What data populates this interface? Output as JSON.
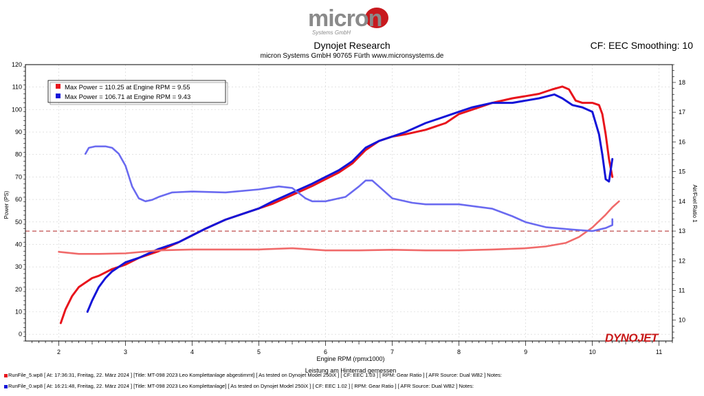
{
  "brand": {
    "logo_main": "micron",
    "logo_sub": "Systems GmbH"
  },
  "header": {
    "title": "Dynojet Research",
    "subtitle": "micron Systems GmbH  90765 Fürth www.micronsystems.de",
    "cf": "CF: EEC Smoothing: 10"
  },
  "watermark": "DYNOJET",
  "colors": {
    "red": "#e8141c",
    "blue": "#1414d8",
    "red_afr": "#f06a6a",
    "blue_afr": "#6a6af0",
    "ref_line": "#b02020"
  },
  "chart_data": {
    "type": "line",
    "xlabel": "Engine RPM (rpmx1000)",
    "xlabel2": "Leistung am Hinterrad gemessen",
    "ylabel": "Power (PS)",
    "y2label": "Air/Fuel Ratio 1",
    "xlim": [
      1.5,
      11.2
    ],
    "ylim": [
      -3,
      120
    ],
    "y2lim": [
      9.3,
      18.6
    ],
    "xticks": [
      2,
      3,
      4,
      5,
      6,
      7,
      8,
      9,
      10,
      11
    ],
    "yticks": [
      0,
      10,
      20,
      30,
      40,
      50,
      60,
      70,
      80,
      90,
      100,
      110,
      120
    ],
    "y2ticks": [
      10,
      11,
      12,
      13,
      14,
      15,
      16,
      17,
      18
    ],
    "legend": [
      "Max Power = 110.25 at Engine RPM = 9.55",
      "Max Power = 106.71 at Engine RPM = 9.43"
    ],
    "reference_afr": 13.0,
    "series": [
      {
        "color": "red",
        "axis": "power",
        "x": [
          2.03,
          2.1,
          2.2,
          2.3,
          2.4,
          2.5,
          2.6,
          2.8,
          3.0,
          3.2,
          3.5,
          3.8,
          4.0,
          4.2,
          4.5,
          4.8,
          5.0,
          5.2,
          5.5,
          5.8,
          6.0,
          6.2,
          6.4,
          6.6,
          6.8,
          7.0,
          7.2,
          7.5,
          7.8,
          8.0,
          8.2,
          8.5,
          8.8,
          9.0,
          9.2,
          9.4,
          9.55,
          9.65,
          9.75,
          9.85,
          10.0,
          10.1,
          10.15,
          10.2,
          10.25,
          10.3
        ],
        "values": [
          5,
          11,
          17,
          21,
          23,
          25,
          26,
          29,
          31,
          34,
          37,
          41,
          44,
          47,
          51,
          54,
          56,
          58,
          62,
          66,
          69,
          72,
          76,
          82,
          86,
          88,
          89,
          91,
          94,
          98,
          100,
          103,
          105,
          106,
          107,
          109,
          110.25,
          109,
          104,
          103,
          103,
          102,
          98,
          89,
          78,
          70
        ]
      },
      {
        "color": "blue",
        "axis": "power",
        "x": [
          2.43,
          2.5,
          2.6,
          2.7,
          2.8,
          3.0,
          3.2,
          3.5,
          3.8,
          4.0,
          4.2,
          4.5,
          4.8,
          5.0,
          5.2,
          5.5,
          5.8,
          6.0,
          6.2,
          6.4,
          6.6,
          6.8,
          7.0,
          7.2,
          7.5,
          7.8,
          8.0,
          8.2,
          8.5,
          8.8,
          9.0,
          9.2,
          9.43,
          9.55,
          9.7,
          9.85,
          10.0,
          10.1,
          10.15,
          10.2,
          10.25,
          10.3
        ],
        "values": [
          10,
          15,
          21,
          25,
          28,
          32,
          34,
          38,
          41,
          44,
          47,
          51,
          54,
          56,
          59,
          63,
          67,
          70,
          73,
          77,
          83,
          86,
          88,
          90,
          94,
          97,
          99,
          101,
          103,
          103,
          104,
          105,
          106.71,
          105,
          102,
          101,
          99,
          89,
          80,
          69,
          68,
          78
        ]
      },
      {
        "color": "red_afr",
        "axis": "afr",
        "x": [
          2.0,
          2.3,
          2.6,
          3.0,
          3.5,
          4.0,
          4.5,
          5.0,
          5.5,
          6.0,
          6.5,
          7.0,
          7.5,
          8.0,
          8.5,
          9.0,
          9.3,
          9.6,
          9.8,
          10.0,
          10.2,
          10.3,
          10.4
        ],
        "values": [
          12.3,
          12.23,
          12.23,
          12.25,
          12.35,
          12.38,
          12.38,
          12.38,
          12.42,
          12.35,
          12.35,
          12.37,
          12.35,
          12.35,
          12.38,
          12.42,
          12.48,
          12.6,
          12.8,
          13.12,
          13.55,
          13.8,
          14.0
        ]
      },
      {
        "color": "blue_afr",
        "axis": "afr",
        "x": [
          2.4,
          2.45,
          2.55,
          2.7,
          2.8,
          2.9,
          3.0,
          3.1,
          3.2,
          3.3,
          3.4,
          3.5,
          3.7,
          4.0,
          4.5,
          5.0,
          5.3,
          5.5,
          5.7,
          5.8,
          6.0,
          6.3,
          6.5,
          6.6,
          6.7,
          6.8,
          7.0,
          7.3,
          7.5,
          8.0,
          8.5,
          8.8,
          9.0,
          9.3,
          9.7,
          10.0,
          10.2,
          10.3,
          10.3
        ],
        "values": [
          15.6,
          15.8,
          15.85,
          15.85,
          15.8,
          15.6,
          15.2,
          14.5,
          14.1,
          14.0,
          14.05,
          14.15,
          14.3,
          14.33,
          14.3,
          14.4,
          14.5,
          14.45,
          14.1,
          14.0,
          14.0,
          14.15,
          14.5,
          14.7,
          14.7,
          14.5,
          14.1,
          13.95,
          13.9,
          13.9,
          13.75,
          13.5,
          13.3,
          13.13,
          13.05,
          13.0,
          13.1,
          13.2,
          13.4
        ]
      }
    ]
  },
  "footer": {
    "line1": "RunFile_5.wp8 [ At: 17:36:31, Freitag, 22. März 2024 ] [Title: MT-098 2023 Leo Komplettanlage abgestimmt]  [ As tested on Dynojet Model 250iX ] [ CF: EEC 1.03 ] [ RPM: Gear Ratio ] [ AFR Source: Dual WB2 ] Notes:",
    "line2": "RunFile_0.wp8 [ At: 16:21:48, Freitag, 22. März 2024 ] [Title: MT-098 2023 Leo Komplettanlage]  [ As tested on Dynojet Model 250iX ] [ CF: EEC 1.02 ] [ RPM: Gear Ratio ] [ AFR Source: Dual WB2 ] Notes:"
  }
}
